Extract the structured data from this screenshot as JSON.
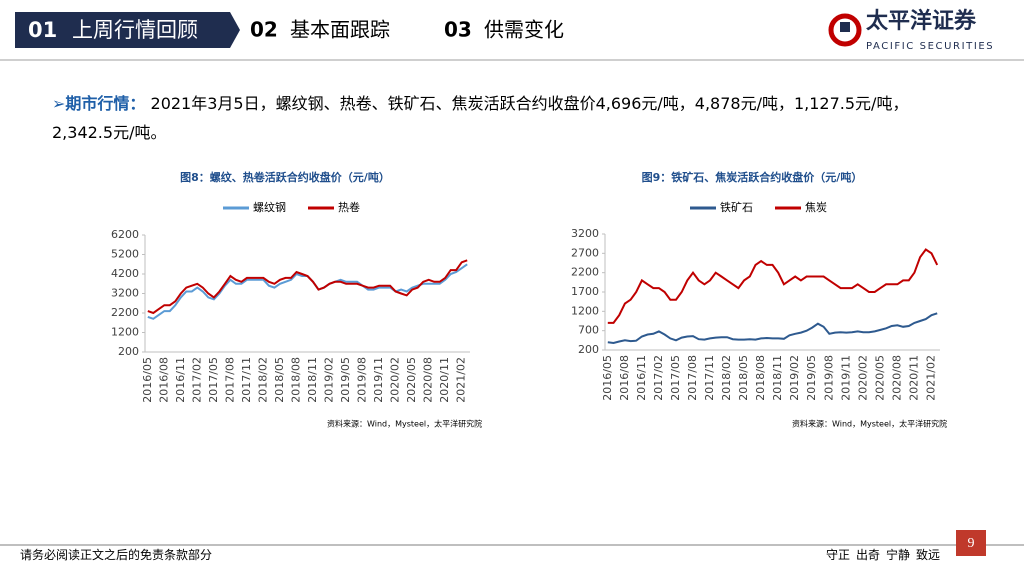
{
  "header": {
    "tabs": [
      {
        "number": "01",
        "label": "上周行情回顾"
      },
      {
        "number": "02",
        "label": "基本面跟踪"
      },
      {
        "number": "03",
        "label": "供需变化"
      }
    ]
  },
  "logo": {
    "name": "太平洋证券",
    "english": "PACIFIC SECURITIES"
  },
  "bullet": {
    "label": "期市行情：",
    "text": "2021年3月5日，螺纹钢、热卷、铁矿石、焦炭活跃合约收盘价4,696元/吨，4,878元/吨，1,127.5元/吨，2,342.5元/吨。"
  },
  "chart_data": [
    {
      "type": "line",
      "title": "图8：螺纹、热卷活跃合约收盘价（元/吨）",
      "source": "资料来源：Wind，Mysteel，太平洋研究院",
      "legend": "top",
      "categories": [
        "2016/05",
        null,
        null,
        "2016/08",
        null,
        null,
        "2016/11",
        null,
        null,
        "2017/02",
        null,
        null,
        "2017/05",
        null,
        null,
        "2017/08",
        null,
        null,
        "2017/11",
        null,
        null,
        "2018/02",
        null,
        null,
        "2018/05",
        null,
        null,
        "2018/08",
        null,
        null,
        "2018/11",
        null,
        null,
        "2019/02",
        null,
        null,
        "2019/05",
        null,
        null,
        "2019/08",
        null,
        null,
        "2019/11",
        null,
        null,
        "2020/02",
        null,
        null,
        "2020/05",
        null,
        null,
        "2020/08",
        null,
        null,
        "2020/11",
        null,
        null,
        "2021/02",
        null
      ],
      "series": [
        {
          "name": "螺纹钢",
          "color": "#5b9bd5",
          "values": [
            2000,
            1900,
            2100,
            2300,
            2300,
            2600,
            3000,
            3300,
            3300,
            3500,
            3300,
            3000,
            2900,
            3200,
            3600,
            3900,
            3700,
            3700,
            3900,
            3900,
            3900,
            3900,
            3600,
            3500,
            3700,
            3800,
            3900,
            4200,
            4100,
            4100,
            3800,
            3400,
            3500,
            3700,
            3800,
            3900,
            3800,
            3800,
            3800,
            3600,
            3400,
            3400,
            3500,
            3500,
            3500,
            3300,
            3400,
            3300,
            3500,
            3600,
            3700,
            3700,
            3700,
            3700,
            3900,
            4200,
            4300,
            4500,
            4700
          ]
        },
        {
          "name": "热卷",
          "color": "#c00000",
          "values": [
            2300,
            2200,
            2400,
            2600,
            2600,
            2800,
            3200,
            3500,
            3600,
            3700,
            3500,
            3200,
            3000,
            3300,
            3700,
            4100,
            3900,
            3800,
            4000,
            4000,
            4000,
            4000,
            3800,
            3700,
            3900,
            4000,
            4000,
            4300,
            4200,
            4100,
            3800,
            3400,
            3500,
            3700,
            3800,
            3800,
            3700,
            3700,
            3700,
            3600,
            3500,
            3500,
            3600,
            3600,
            3600,
            3300,
            3200,
            3100,
            3400,
            3500,
            3800,
            3900,
            3800,
            3800,
            4000,
            4400,
            4400,
            4800,
            4900
          ]
        }
      ],
      "ylim": [
        200,
        6200
      ],
      "yticks": [
        200,
        1200,
        2200,
        3200,
        4200,
        5200,
        6200
      ]
    },
    {
      "type": "line",
      "title": "图9：铁矿石、焦炭活跃合约收盘价（元/吨）",
      "source": "资料来源：Wind，Mysteel，太平洋研究院",
      "legend": "top",
      "categories": [
        "2016/05",
        null,
        null,
        "2016/08",
        null,
        null,
        "2016/11",
        null,
        null,
        "2017/02",
        null,
        null,
        "2017/05",
        null,
        null,
        "2017/08",
        null,
        null,
        "2017/11",
        null,
        null,
        "2018/02",
        null,
        null,
        "2018/05",
        null,
        null,
        "2018/08",
        null,
        null,
        "2018/11",
        null,
        null,
        "2019/02",
        null,
        null,
        "2019/05",
        null,
        null,
        "2019/08",
        null,
        null,
        "2019/11",
        null,
        null,
        "2020/02",
        null,
        null,
        "2020/05",
        null,
        null,
        "2020/08",
        null,
        null,
        "2020/11",
        null,
        null,
        "2021/02",
        null
      ],
      "series": [
        {
          "name": "铁矿石",
          "color": "#2e5a8f",
          "values": [
            400,
            380,
            420,
            450,
            430,
            440,
            550,
            600,
            620,
            680,
            600,
            500,
            450,
            520,
            550,
            560,
            480,
            470,
            500,
            520,
            530,
            530,
            480,
            470,
            470,
            480,
            470,
            500,
            510,
            500,
            500,
            490,
            580,
            620,
            650,
            700,
            780,
            880,
            800,
            620,
            650,
            660,
            650,
            660,
            680,
            660,
            660,
            680,
            720,
            760,
            820,
            840,
            800,
            820,
            900,
            950,
            1000,
            1100,
            1150
          ]
        },
        {
          "name": "焦炭",
          "color": "#c00000",
          "values": [
            900,
            900,
            1100,
            1400,
            1500,
            1700,
            2000,
            1900,
            1800,
            1800,
            1700,
            1500,
            1500,
            1700,
            2000,
            2200,
            2000,
            1900,
            2000,
            2200,
            2100,
            2000,
            1900,
            1800,
            2000,
            2100,
            2400,
            2500,
            2400,
            2400,
            2200,
            1900,
            2000,
            2100,
            2000,
            2100,
            2100,
            2100,
            2100,
            2000,
            1900,
            1800,
            1800,
            1800,
            1900,
            1800,
            1700,
            1700,
            1800,
            1900,
            1900,
            1900,
            2000,
            2000,
            2200,
            2600,
            2800,
            2700,
            2400
          ]
        }
      ],
      "ylim": [
        200,
        3200
      ],
      "yticks": [
        200,
        700,
        1200,
        1700,
        2200,
        2700,
        3200
      ]
    }
  ],
  "footer": {
    "disclaimer": "请务必阅读正文之后的免责条款部分",
    "motto": "守正  出奇  宁静  致远",
    "page_number": "9"
  }
}
